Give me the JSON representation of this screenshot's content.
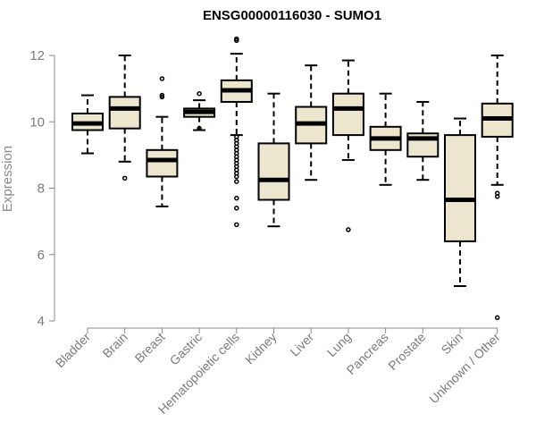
{
  "chart_data": {
    "type": "boxplot",
    "title": "ENSG00000116030 - SUMO1",
    "ylabel": "Expression",
    "ylim": [
      4,
      12.6
    ],
    "yticks": [
      4,
      6,
      8,
      10,
      12
    ],
    "box_color": "#ede6cf",
    "categories": [
      "Bladder",
      "Brain",
      "Breast",
      "Gastric",
      "Hematopoietic cells",
      "Kidney",
      "Liver",
      "Lung",
      "Pancreas",
      "Prostate",
      "Skin",
      "Unknown / Other"
    ],
    "boxes": [
      {
        "whisker_low": 9.05,
        "q1": 9.75,
        "median": 9.95,
        "q3": 10.25,
        "whisker_high": 10.8,
        "outliers": []
      },
      {
        "whisker_low": 8.8,
        "q1": 9.8,
        "median": 10.4,
        "q3": 10.75,
        "whisker_high": 12.0,
        "outliers": [
          8.3
        ]
      },
      {
        "whisker_low": 7.45,
        "q1": 8.35,
        "median": 8.85,
        "q3": 9.15,
        "whisker_high": 10.15,
        "outliers": [
          10.75,
          10.8,
          11.3
        ]
      },
      {
        "whisker_low": 9.75,
        "q1": 10.15,
        "median": 10.3,
        "q3": 10.4,
        "whisker_high": 10.65,
        "outliers": [
          9.8,
          10.85
        ]
      },
      {
        "whisker_low": 9.6,
        "q1": 10.6,
        "median": 10.95,
        "q3": 11.25,
        "whisker_high": 12.05,
        "outliers": [
          6.9,
          7.4,
          7.7,
          8.2,
          8.35,
          8.45,
          8.55,
          8.65,
          8.75,
          8.85,
          8.95,
          9.05,
          9.15,
          9.25,
          9.35,
          9.45,
          9.55,
          12.45,
          12.5
        ]
      },
      {
        "whisker_low": 6.85,
        "q1": 7.65,
        "median": 8.25,
        "q3": 9.35,
        "whisker_high": 10.85,
        "outliers": []
      },
      {
        "whisker_low": 8.25,
        "q1": 9.35,
        "median": 9.95,
        "q3": 10.45,
        "whisker_high": 11.7,
        "outliers": []
      },
      {
        "whisker_low": 8.85,
        "q1": 9.6,
        "median": 10.4,
        "q3": 10.85,
        "whisker_high": 11.85,
        "outliers": [
          6.75
        ]
      },
      {
        "whisker_low": 8.1,
        "q1": 9.15,
        "median": 9.5,
        "q3": 9.85,
        "whisker_high": 10.85,
        "outliers": []
      },
      {
        "whisker_low": 8.25,
        "q1": 8.95,
        "median": 9.5,
        "q3": 9.65,
        "whisker_high": 10.6,
        "outliers": []
      },
      {
        "whisker_low": 5.05,
        "q1": 6.4,
        "median": 7.65,
        "q3": 9.6,
        "whisker_high": 10.1,
        "outliers": []
      },
      {
        "whisker_low": 8.1,
        "q1": 9.55,
        "median": 10.1,
        "q3": 10.55,
        "whisker_high": 12.0,
        "outliers": [
          4.1,
          7.75,
          7.85
        ]
      }
    ]
  }
}
